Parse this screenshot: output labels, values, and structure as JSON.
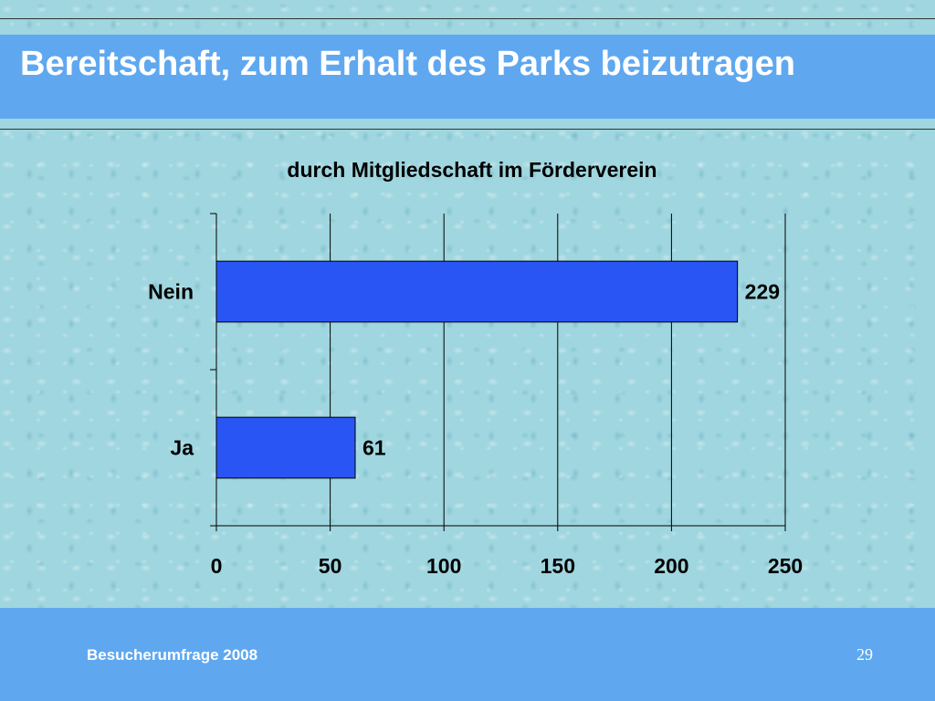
{
  "slide": {
    "title": "Bereitschaft, zum Erhalt des Parks beizutragen",
    "footer": "Besucherumfrage 2008",
    "page_number": "29"
  },
  "colors": {
    "band": "#5fa8f0",
    "bar": "#2a55f5"
  },
  "chart_data": {
    "type": "bar",
    "orientation": "horizontal",
    "title": "durch Mitgliedschaft im Förderverein",
    "categories": [
      "Nein",
      "Ja"
    ],
    "values": [
      229,
      61
    ],
    "data_labels": [
      "229",
      "61"
    ],
    "xlim": [
      0,
      250
    ],
    "x_ticks": [
      "0",
      "50",
      "100",
      "150",
      "200",
      "250"
    ],
    "grid": "vertical",
    "legend": "none"
  }
}
